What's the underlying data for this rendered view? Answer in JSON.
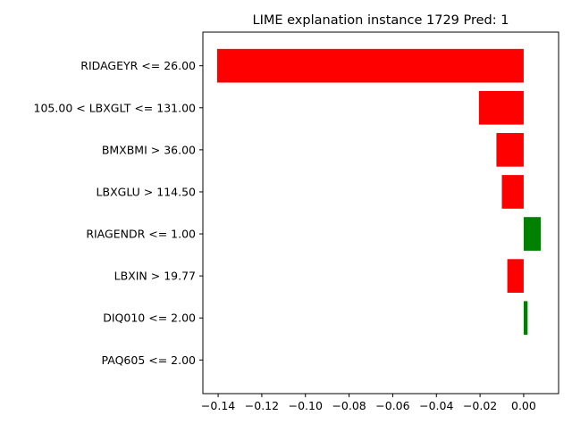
{
  "chart_data": {
    "type": "bar",
    "orientation": "horizontal",
    "title": "LIME explanation instance 1729 Pred: 1",
    "xlabel": "",
    "ylabel": "",
    "xlim": [
      -0.147,
      0.016
    ],
    "xticks": [
      -0.14,
      -0.12,
      -0.1,
      -0.08,
      -0.06,
      -0.04,
      -0.02,
      0.0
    ],
    "xtick_labels": [
      "−0.14",
      "−0.12",
      "−0.10",
      "−0.08",
      "−0.06",
      "−0.04",
      "−0.02",
      "0.00"
    ],
    "categories": [
      "RIDAGEYR <= 26.00",
      "105.00 < LBXGLT <= 131.00",
      "BMXBMI > 36.00",
      "LBXGLU > 114.50",
      "RIAGENDR <= 1.00",
      "LBXIN > 19.77",
      "DIQ010 <= 2.00",
      "PAQ605 <= 2.00"
    ],
    "values": [
      -0.1405,
      -0.0205,
      -0.0125,
      -0.01,
      0.0078,
      -0.0075,
      0.0018,
      0.0
    ],
    "colors": {
      "negative": "#ff0000",
      "positive": "#008000"
    },
    "grid": false,
    "legend": "none"
  }
}
